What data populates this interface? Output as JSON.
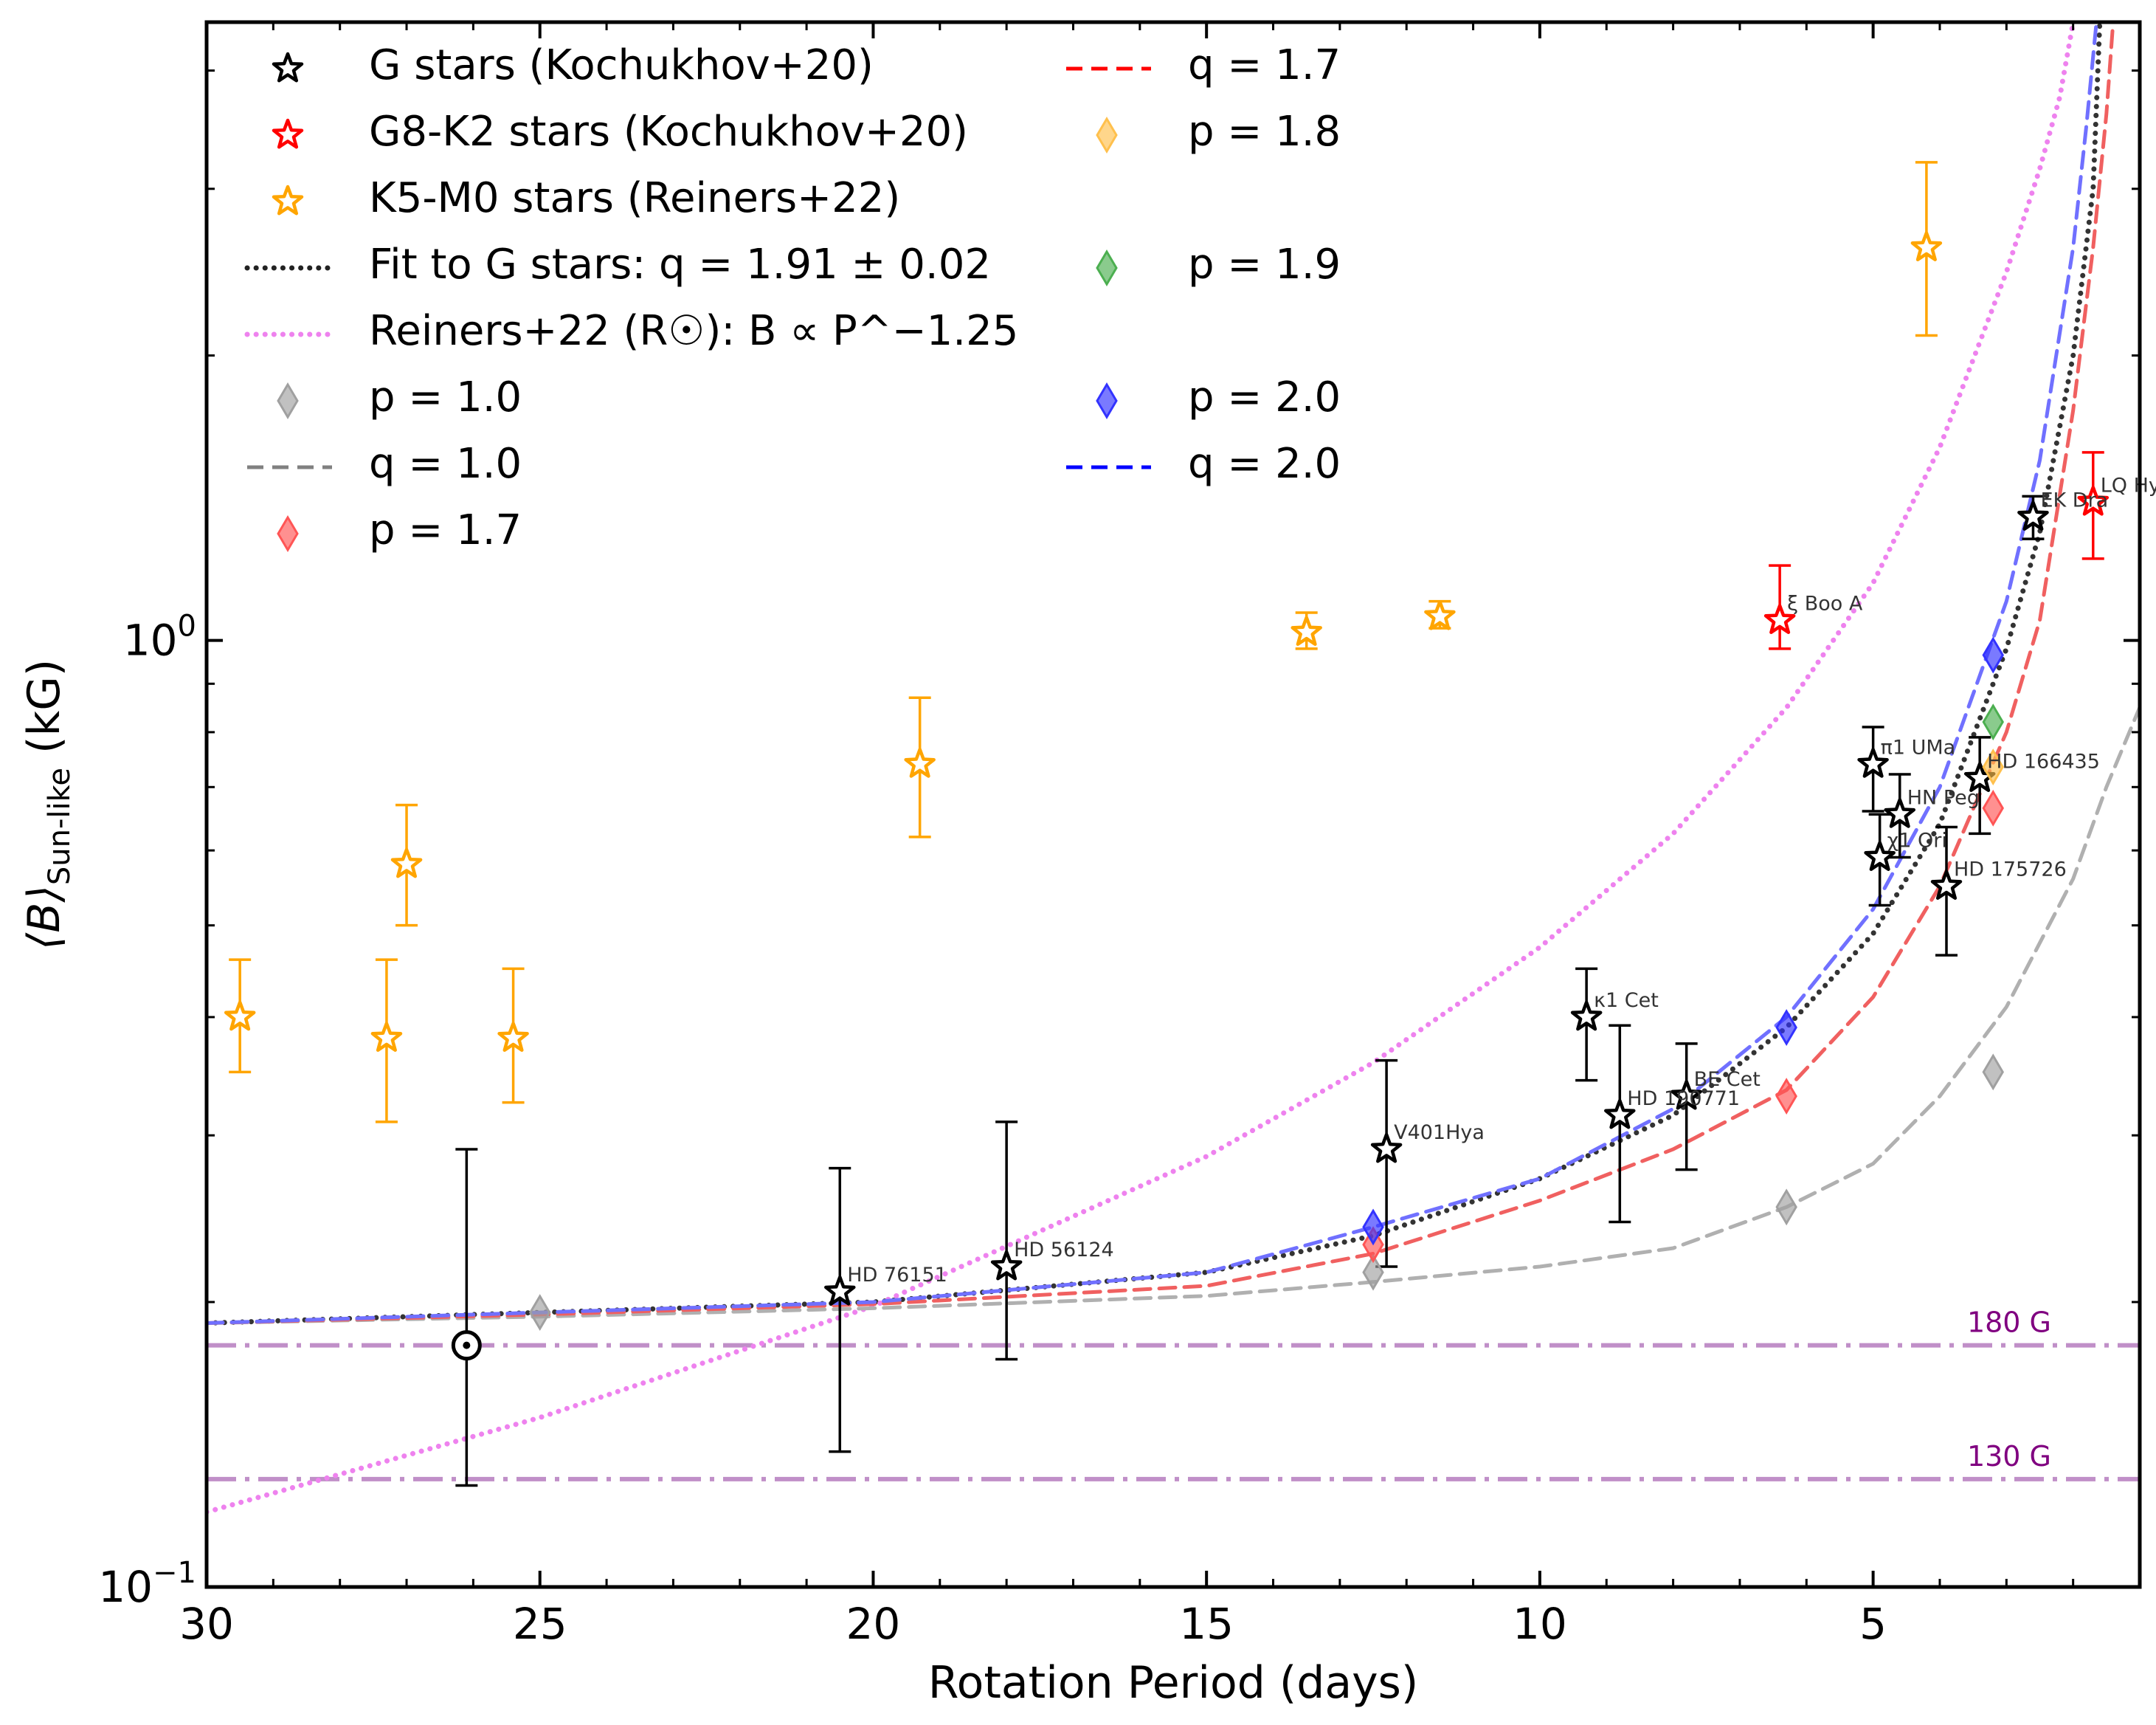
{
  "chart_data": {
    "type": "scatter",
    "xlabel": "Rotation Period (days)",
    "ylabel_main": "⟨B⟩",
    "ylabel_sub": "Sun-like",
    "ylabel_unit": " (kG)",
    "x_axis": {
      "range": [
        30,
        1
      ],
      "reversed": true,
      "ticks": [
        30,
        25,
        20,
        15,
        10,
        5
      ],
      "tick_labels": [
        "30",
        "25",
        "20",
        "15",
        "10",
        "5"
      ]
    },
    "y_axis": {
      "scale": "log",
      "range": [
        0.1,
        4.5
      ],
      "ticks": [
        0.1,
        1.0
      ],
      "tick_labels": [
        {
          "base": "10",
          "exp": "−1"
        },
        {
          "base": "10",
          "exp": "0"
        }
      ]
    },
    "grid": false,
    "legend": {
      "placement": "top-left",
      "entries": [
        {
          "label": "G stars (Kochukhov+20)",
          "marker": "star",
          "color": "#000000"
        },
        {
          "label": "G8-K2 stars (Kochukhov+20)",
          "marker": "star",
          "color": "#ff0000"
        },
        {
          "label": "K5-M0 stars (Reiners+22)",
          "marker": "star",
          "color": "#ffa500"
        },
        {
          "label": "Fit to G stars: q = 1.91 ± 0.02",
          "marker": "dotted",
          "color": "#222222"
        },
        {
          "label": "Reiners+22 (R☉): B ∝ P^−1.25",
          "marker": "dotted",
          "color": "#ee82ee"
        },
        {
          "label": "p = 1.0",
          "marker": "diamond",
          "color": "#a0a0a0"
        },
        {
          "label": "q = 1.0",
          "marker": "dashed",
          "color": "#808080"
        },
        {
          "label": "p = 1.7",
          "marker": "diamond",
          "color": "#ff5555"
        },
        {
          "label": "q = 1.7",
          "marker": "dashed",
          "color": "#ff0000"
        },
        {
          "label": "p = 1.8",
          "marker": "diamond",
          "color": "#ffc04d"
        },
        {
          "label": "p = 1.9",
          "marker": "diamond",
          "color": "#4caf50"
        },
        {
          "label": "p = 2.0",
          "marker": "diamond",
          "color": "#3333ff"
        },
        {
          "label": "q = 2.0",
          "marker": "dashed",
          "color": "#0000ff"
        }
      ]
    },
    "series": [
      {
        "name": "G stars (Kochukhov+20)",
        "marker": "star",
        "color": "#000000",
        "points": [
          {
            "x": 20.5,
            "y": 0.205,
            "lo": 0.139,
            "hi": 0.277,
            "label": "HD 76151"
          },
          {
            "x": 18.0,
            "y": 0.218,
            "lo": 0.174,
            "hi": 0.31,
            "label": "HD 56124"
          },
          {
            "x": 12.3,
            "y": 0.29,
            "lo": 0.218,
            "hi": 0.36,
            "label": "V401Hya"
          },
          {
            "x": 9.3,
            "y": 0.4,
            "lo": 0.343,
            "hi": 0.45,
            "label": "κ1 Cet"
          },
          {
            "x": 8.8,
            "y": 0.315,
            "lo": 0.243,
            "hi": 0.392,
            "label": "HD 190771"
          },
          {
            "x": 7.8,
            "y": 0.33,
            "lo": 0.276,
            "hi": 0.375,
            "label": "BE Cet"
          },
          {
            "x": 5.0,
            "y": 0.74,
            "lo": 0.66,
            "hi": 0.81,
            "label": "π1 UMa"
          },
          {
            "x": 4.6,
            "y": 0.655,
            "lo": 0.59,
            "hi": 0.722,
            "label": "HN Peg"
          },
          {
            "x": 4.9,
            "y": 0.59,
            "lo": 0.525,
            "hi": 0.655,
            "label": "χ1 Ori"
          },
          {
            "x": 3.4,
            "y": 0.715,
            "lo": 0.625,
            "hi": 0.79,
            "label": "HD 166435"
          },
          {
            "x": 3.9,
            "y": 0.55,
            "lo": 0.465,
            "hi": 0.635,
            "label": "HD 175726"
          },
          {
            "x": 2.6,
            "y": 1.35,
            "lo": 1.28,
            "hi": 1.42,
            "label": "EK Dra"
          }
        ]
      },
      {
        "name": "G8-K2 stars (Kochukhov+20)",
        "marker": "star",
        "color": "#ff0000",
        "points": [
          {
            "x": 6.4,
            "y": 1.05,
            "lo": 0.98,
            "hi": 1.2,
            "label": "ξ Boo A"
          },
          {
            "x": 1.7,
            "y": 1.4,
            "lo": 1.22,
            "hi": 1.58,
            "label": "LQ Hya"
          }
        ]
      },
      {
        "name": "K5-M0 stars (Reiners+22)",
        "marker": "star",
        "color": "#ffa500",
        "points": [
          {
            "x": 29.5,
            "y": 0.4,
            "lo": 0.35,
            "hi": 0.46
          },
          {
            "x": 27.3,
            "y": 0.38,
            "lo": 0.31,
            "hi": 0.46
          },
          {
            "x": 27.0,
            "y": 0.58,
            "lo": 0.5,
            "hi": 0.67
          },
          {
            "x": 25.4,
            "y": 0.38,
            "lo": 0.325,
            "hi": 0.45
          },
          {
            "x": 19.3,
            "y": 0.74,
            "lo": 0.62,
            "hi": 0.87
          },
          {
            "x": 13.5,
            "y": 1.02,
            "lo": 0.98,
            "hi": 1.07
          },
          {
            "x": 11.5,
            "y": 1.06,
            "lo": 1.03,
            "hi": 1.1
          },
          {
            "x": 4.2,
            "y": 2.6,
            "lo": 2.1,
            "hi": 3.2
          }
        ]
      },
      {
        "name": "Sun",
        "marker": "sun",
        "color": "#000000",
        "points": [
          {
            "x": 26.1,
            "y": 0.18,
            "lo": 0.128,
            "hi": 0.29
          }
        ]
      },
      {
        "name": "p = 1.0",
        "marker": "diamond",
        "color": "#a0a0a0",
        "points": [
          {
            "x": 25.0,
            "y": 0.195
          },
          {
            "x": 12.5,
            "y": 0.215
          },
          {
            "x": 6.3,
            "y": 0.252
          },
          {
            "x": 3.2,
            "y": 0.35
          }
        ]
      },
      {
        "name": "p = 1.7",
        "marker": "diamond",
        "color": "#ff5555",
        "points": [
          {
            "x": 12.5,
            "y": 0.23
          },
          {
            "x": 6.3,
            "y": 0.33
          },
          {
            "x": 3.2,
            "y": 0.665
          }
        ]
      },
      {
        "name": "p = 1.8",
        "marker": "diamond",
        "color": "#ffc04d",
        "points": [
          {
            "x": 3.2,
            "y": 0.735
          }
        ]
      },
      {
        "name": "p = 1.9",
        "marker": "diamond",
        "color": "#4caf50",
        "points": [
          {
            "x": 3.2,
            "y": 0.82
          }
        ]
      },
      {
        "name": "p = 2.0",
        "marker": "diamond",
        "color": "#3333ff",
        "points": [
          {
            "x": 12.5,
            "y": 0.24
          },
          {
            "x": 6.3,
            "y": 0.39
          },
          {
            "x": 3.2,
            "y": 0.965
          }
        ]
      }
    ],
    "curves": [
      {
        "name": "Fit to G stars",
        "style": "dotted",
        "color": "#333333",
        "points": [
          [
            30,
            0.19
          ],
          [
            25,
            0.195
          ],
          [
            20,
            0.2
          ],
          [
            15,
            0.215
          ],
          [
            12.5,
            0.235
          ],
          [
            10,
            0.27
          ],
          [
            8,
            0.315
          ],
          [
            6.3,
            0.39
          ],
          [
            5,
            0.49
          ],
          [
            4,
            0.64
          ],
          [
            3,
            0.98
          ],
          [
            2.5,
            1.3
          ],
          [
            2,
            2.0
          ],
          [
            1.7,
            3.0
          ],
          [
            1.6,
            4.5
          ]
        ]
      },
      {
        "name": "Reiners+22 (R☉)",
        "style": "dotted",
        "color": "#ee82ee",
        "points": [
          [
            30,
            0.12
          ],
          [
            25,
            0.151
          ],
          [
            20,
            0.198
          ],
          [
            15,
            0.285
          ],
          [
            12.5,
            0.358
          ],
          [
            10,
            0.474
          ],
          [
            8,
            0.625
          ],
          [
            6.3,
            0.849
          ],
          [
            5,
            1.15
          ],
          [
            4,
            1.6
          ],
          [
            3,
            2.45
          ],
          [
            2.5,
            3.15
          ],
          [
            2.2,
            3.75
          ],
          [
            2.0,
            4.5
          ]
        ]
      },
      {
        "name": "q = 1.0",
        "style": "dashed",
        "color": "#b0b0b0",
        "points": [
          [
            30,
            0.19
          ],
          [
            25,
            0.193
          ],
          [
            20,
            0.197
          ],
          [
            15,
            0.203
          ],
          [
            12.5,
            0.21
          ],
          [
            10,
            0.218
          ],
          [
            8,
            0.228
          ],
          [
            6.3,
            0.252
          ],
          [
            5,
            0.28
          ],
          [
            4,
            0.33
          ],
          [
            3,
            0.41
          ],
          [
            2,
            0.56
          ],
          [
            1.5,
            0.7
          ],
          [
            1,
            0.85
          ]
        ]
      },
      {
        "name": "q = 1.7",
        "style": "dashed",
        "color": "#f06060",
        "points": [
          [
            30,
            0.19
          ],
          [
            25,
            0.194
          ],
          [
            20,
            0.199
          ],
          [
            15,
            0.208
          ],
          [
            12.5,
            0.225
          ],
          [
            10,
            0.256
          ],
          [
            8,
            0.29
          ],
          [
            6.3,
            0.335
          ],
          [
            5,
            0.42
          ],
          [
            4,
            0.55
          ],
          [
            3,
            0.8
          ],
          [
            2.5,
            1.05
          ],
          [
            2,
            1.75
          ],
          [
            1.7,
            2.6
          ],
          [
            1.5,
            3.6
          ],
          [
            1.4,
            4.5
          ]
        ]
      },
      {
        "name": "q = 2.0",
        "style": "dashed",
        "color": "#7070ff",
        "points": [
          [
            30,
            0.19
          ],
          [
            25,
            0.195
          ],
          [
            20,
            0.2
          ],
          [
            15,
            0.215
          ],
          [
            12.5,
            0.24
          ],
          [
            10,
            0.27
          ],
          [
            8,
            0.32
          ],
          [
            6.3,
            0.4
          ],
          [
            5,
            0.52
          ],
          [
            4,
            0.7
          ],
          [
            3,
            1.1
          ],
          [
            2.5,
            1.55
          ],
          [
            2,
            2.6
          ],
          [
            1.8,
            3.5
          ],
          [
            1.65,
            4.5
          ]
        ]
      }
    ],
    "reference_lines": [
      {
        "y": 0.18,
        "label": "180 G",
        "color": "#c08fc8"
      },
      {
        "y": 0.13,
        "label": "130 G",
        "color": "#c08fc8"
      }
    ]
  }
}
